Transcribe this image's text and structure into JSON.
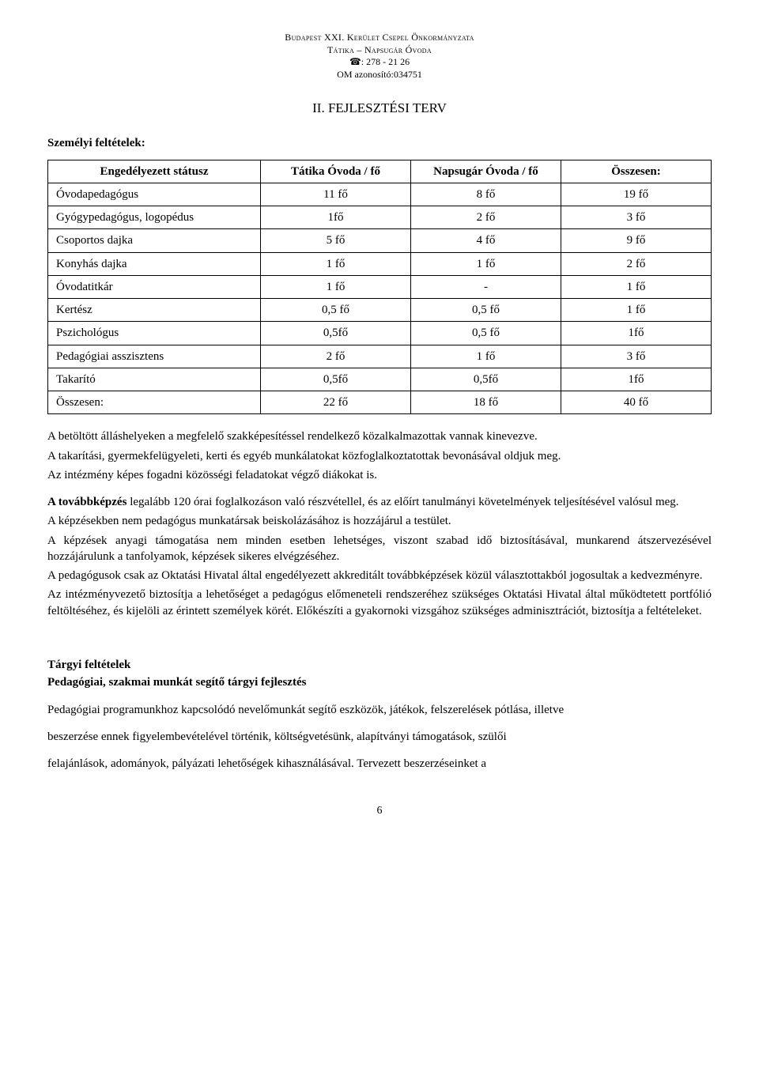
{
  "header": {
    "line1": "Budapest XXI. Kerület Csepel Önkormányzata",
    "line2": "Tátika – Napsugár Óvoda",
    "line3": "☎: 278 - 21 26",
    "line4": "OM azonosító:034751"
  },
  "title": "II. FEJLESZTÉSI TERV",
  "subheading1": "Személyi feltételek:",
  "staffTable": {
    "columns": [
      "Engedélyezett státusz",
      "Tátika Óvoda / fő",
      "Napsugár Óvoda / fő",
      "Összesen:"
    ],
    "rows": [
      [
        "Óvodapedagógus",
        "11 fő",
        "8 fő",
        "19 fő"
      ],
      [
        "Gyógypedagógus, logopédus",
        "1fő",
        "2 fő",
        "3 fő"
      ],
      [
        "Csoportos dajka",
        "5 fő",
        "4 fő",
        "9 fő"
      ],
      [
        "Konyhás dajka",
        "1 fő",
        "1 fő",
        "2 fő"
      ],
      [
        "Óvodatitkár",
        "1 fő",
        "-",
        "1 fő"
      ],
      [
        "Kertész",
        "0,5 fő",
        "0,5 fő",
        "1 fő"
      ],
      [
        "Pszichológus",
        "0,5fő",
        "0,5 fő",
        "1fő"
      ],
      [
        "Pedagógiai asszisztens",
        "2 fő",
        "1 fő",
        "3 fő"
      ],
      [
        "Takarító",
        "0,5fő",
        "0,5fő",
        "1fő"
      ],
      [
        "Összesen:",
        "22 fő",
        "18 fő",
        "40 fő"
      ]
    ]
  },
  "para1": {
    "l1": "A betöltött álláshelyeken a megfelelő szakképesítéssel rendelkező közalkalmazottak vannak kinevezve.",
    "l2": "A takarítási, gyermekfelügyeleti, kerti és egyéb munkálatokat közfoglalkoztatottak bevonásával oldjuk meg.",
    "l3": "Az intézmény képes fogadni közösségi feladatokat végző diákokat is."
  },
  "para2": {
    "l1": "A továbbképzés legalább 120 órai foglalkozáson való részvétellel, és az előírt tanulmányi követelmények teljesítésével valósul meg.",
    "l2": "A képzésekben nem pedagógus munkatársak beiskolázásához is hozzájárul a testület.",
    "l3": "A képzések anyagi támogatása nem minden esetben lehetséges, viszont szabad idő biztosításával, munkarend átszervezésével hozzájárulunk a tanfolyamok, képzések sikeres elvégzéséhez.",
    "l4": "A pedagógusok csak az Oktatási Hivatal által engedélyezett akkreditált továbbképzések közül választottakból jogosultak a kedvezményre.",
    "l5": "Az intézményvezető biztosítja a lehetőséget a pedagógus előmeneteli rendszeréhez szükséges Oktatási Hivatal által működtetett portfólió feltöltéséhez, és kijelöli az érintett személyek körét. Előkészíti a gyakornoki vizsgához szükséges adminisztrációt, biztosítja a feltételeket."
  },
  "subheading2a": "Tárgyi feltételek",
  "subheading2b": "Pedagógiai, szakmai munkát segítő tárgyi fejlesztés",
  "para3": {
    "l1": "Pedagógiai programunkhoz kapcsolódó nevelőmunkát segítő eszközök, játékok, felszerelések pótlása, illetve",
    "l2": "beszerzése ennek figyelembevételével történik, költségvetésünk, alapítványi támogatások, szülői",
    "l3": "felajánlások, adományok, pályázati lehetőségek kihasználásával. Tervezett beszerzéseinket a"
  },
  "pageNumber": "6"
}
